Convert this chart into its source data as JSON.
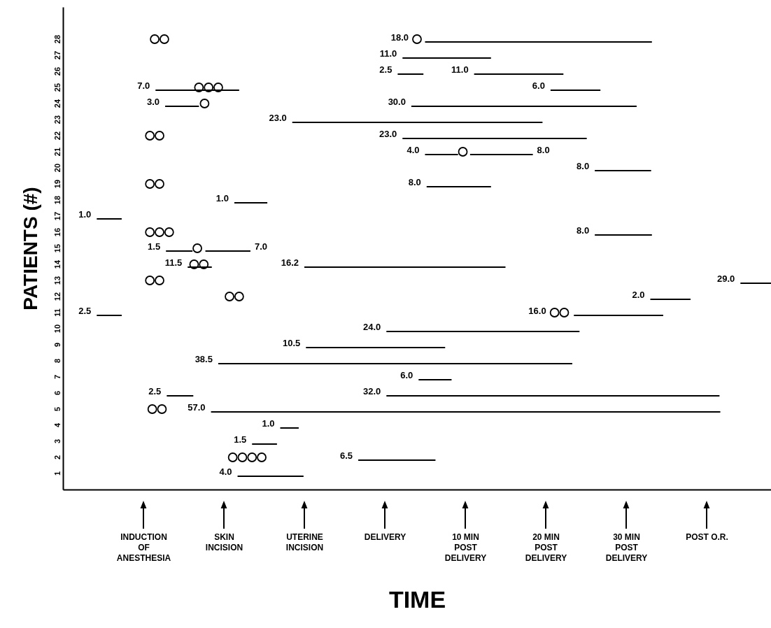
{
  "chart_data": {
    "type": "bar",
    "orientation": "horizontal",
    "xlabel": "TIME",
    "ylabel": "PATIENTS (#)",
    "categories": [
      "28",
      "27",
      "26",
      "25",
      "24",
      "23",
      "22",
      "21",
      "20",
      "19",
      "18",
      "17",
      "16",
      "15",
      "14",
      "13",
      "12",
      "11",
      "10",
      "9",
      "8",
      "7",
      "6",
      "5",
      "4",
      "3",
      "2",
      "1"
    ],
    "xlim": [
      -40,
      48
    ],
    "xticks": [
      {
        "value": -30,
        "label": "INDUCTION\nOF\nANESTHESIA"
      },
      {
        "value": -20,
        "label": "SKIN\nINCISION"
      },
      {
        "value": -10,
        "label": "UTERINE\nINCISION"
      },
      {
        "value": 0,
        "label": "DELIVERY"
      },
      {
        "value": 10,
        "label": "10 MIN\nPOST\nDELIVERY"
      },
      {
        "value": 20,
        "label": "20 MIN\nPOST\nDELIVERY"
      },
      {
        "value": 30,
        "label": "30 MIN\nPOST\nDELIVERY"
      },
      {
        "value": 40,
        "label": "POST O.R."
      }
    ],
    "series": [
      {
        "color": "#000000",
        "base": [
          5.0,
          2.2,
          1.6,
          -28.5,
          -27.3,
          -11.5,
          2.2,
          5.0,
          26.1,
          5.2,
          -18.7,
          -35.8,
          26.1,
          -27.2,
          -24.5,
          44.2,
          33.0,
          -35.8,
          0.2,
          -9.8,
          -20.7,
          4.2,
          -27.1,
          -21.6,
          -13.0,
          -16.5,
          -3.3,
          -18.3
        ],
        "values": [
          28.2,
          11.0,
          3.2,
          10.4,
          4.2,
          31.1,
          22.9,
          4.1,
          7.0,
          8.0,
          4.1,
          3.1,
          7.1,
          3.3,
          3.0,
          3.8,
          5.0,
          3.1,
          24.0,
          17.3,
          44.0,
          4.1,
          3.3,
          63.3,
          2.3,
          3.1,
          9.6,
          8.2
        ]
      },
      {
        "color": "#000000",
        "base": [
          null,
          null,
          11.1,
          20.6,
          3.3,
          null,
          null,
          10.6,
          null,
          null,
          null,
          null,
          null,
          -22.3,
          -10.0,
          null,
          null,
          23.5,
          null,
          null,
          null,
          null,
          0.2,
          null,
          null,
          null,
          null,
          null
        ],
        "values": [
          null,
          null,
          11.1,
          6.2,
          28.0,
          null,
          null,
          7.8,
          null,
          null,
          null,
          null,
          null,
          5.6,
          25.0,
          null,
          null,
          11.1,
          null,
          null,
          null,
          null,
          41.4,
          null,
          null,
          null,
          null,
          null
        ]
      },
      {
        "type": "scatter",
        "color": "#000000",
        "values": [
          -28.6,
          null,
          null,
          -23.1,
          -22.4,
          null,
          -29.2,
          9.7,
          null,
          -29.2,
          null,
          null,
          -29.2,
          -23.3,
          -23.7,
          -29.2,
          -19.3,
          21.1,
          null,
          null,
          null,
          null,
          null,
          -28.9,
          null,
          null,
          -18.9,
          null
        ]
      },
      {
        "type": "scatter",
        "color": "#000000",
        "values": [
          -27.4,
          null,
          null,
          -21.9,
          null,
          null,
          -28.0,
          null,
          null,
          -28.0,
          null,
          null,
          -28.0,
          null,
          -22.5,
          -28.0,
          -18.1,
          22.3,
          null,
          null,
          null,
          null,
          null,
          -27.7,
          null,
          null,
          -17.7,
          null
        ]
      },
      {
        "type": "scatter",
        "color": "#000000",
        "values": [
          4.0,
          null,
          null,
          -20.7,
          null,
          null,
          null,
          null,
          null,
          null,
          null,
          null,
          -26.8,
          null,
          null,
          null,
          null,
          null,
          null,
          null,
          null,
          null,
          null,
          null,
          null,
          null,
          -16.5,
          null
        ]
      },
      {
        "type": "scatter",
        "color": "#000000",
        "values": [
          null,
          null,
          null,
          null,
          null,
          null,
          null,
          null,
          null,
          null,
          null,
          null,
          null,
          null,
          null,
          null,
          null,
          null,
          null,
          null,
          null,
          null,
          null,
          null,
          null,
          null,
          -15.3,
          null
        ]
      }
    ],
    "marker": "circle",
    "annotations": [
      {
        "text": "18.0",
        "x": 4.0,
        "y": "28"
      },
      {
        "text": "11.0",
        "x": 2.2,
        "y": "27"
      },
      {
        "text": "2.5",
        "x": 1.6,
        "y": "26"
      },
      {
        "text": "11.0",
        "x": 11.1,
        "y": "26"
      },
      {
        "text": "7.0",
        "x": -28.5,
        "y": "25"
      },
      {
        "text": "6.0",
        "x": 20.6,
        "y": "25"
      },
      {
        "text": "3.0",
        "x": -27.3,
        "y": "24"
      },
      {
        "text": "30.0",
        "x": 3.3,
        "y": "24"
      },
      {
        "text": "23.0",
        "x": -11.5,
        "y": "23"
      },
      {
        "text": "23.0",
        "x": 2.2,
        "y": "22"
      },
      {
        "text": "4.0",
        "x": 5.0,
        "y": "21"
      },
      {
        "text": "8.0",
        "x": 18.4,
        "y": "21"
      },
      {
        "text": "8.0",
        "x": 26.1,
        "y": "20"
      },
      {
        "text": "8.0",
        "x": 5.2,
        "y": "19"
      },
      {
        "text": "1.0",
        "x": -18.7,
        "y": "18"
      },
      {
        "text": "1.0",
        "x": -35.8,
        "y": "17"
      },
      {
        "text": "8.0",
        "x": 26.1,
        "y": "16"
      },
      {
        "text": "1.5",
        "x": -27.2,
        "y": "15"
      },
      {
        "text": "7.0",
        "x": -16.7,
        "y": "15"
      },
      {
        "text": "11.5",
        "x": -24.5,
        "y": "14"
      },
      {
        "text": "16.2",
        "x": -10.0,
        "y": "14"
      },
      {
        "text": "29.0",
        "x": 44.2,
        "y": "13"
      },
      {
        "text": "2.0",
        "x": 33.0,
        "y": "12"
      },
      {
        "text": "2.5",
        "x": -35.8,
        "y": "11"
      },
      {
        "text": "16.0",
        "x": 21.1,
        "y": "11"
      },
      {
        "text": "24.0",
        "x": 0.2,
        "y": "10"
      },
      {
        "text": "10.5",
        "x": -9.8,
        "y": "9"
      },
      {
        "text": "38.5",
        "x": -20.7,
        "y": "8"
      },
      {
        "text": "6.0",
        "x": 4.2,
        "y": "7"
      },
      {
        "text": "2.5",
        "x": -27.1,
        "y": "6"
      },
      {
        "text": "32.0",
        "x": 0.2,
        "y": "6"
      },
      {
        "text": "57.0",
        "x": -21.6,
        "y": "5"
      },
      {
        "text": "1.0",
        "x": -13.0,
        "y": "4"
      },
      {
        "text": "1.5",
        "x": -16.5,
        "y": "3"
      },
      {
        "text": "6.5",
        "x": -3.3,
        "y": "2"
      },
      {
        "text": "4.0",
        "x": -18.3,
        "y": "1"
      }
    ]
  }
}
